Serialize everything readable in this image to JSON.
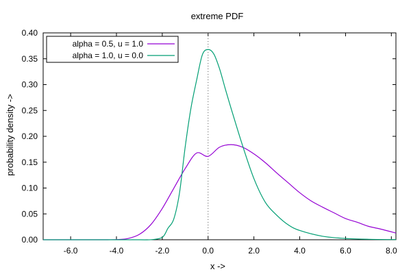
{
  "chart_data": {
    "type": "line",
    "title": "extreme PDF",
    "xlabel": "x ->",
    "ylabel": "probability density ->",
    "xlim": [
      -7.2,
      8.2
    ],
    "ylim": [
      0,
      0.4
    ],
    "x_ticks": [
      -6,
      -4,
      -2,
      0,
      2,
      4,
      6,
      8
    ],
    "x_tick_labels": [
      "-6.0",
      "-4.0",
      "-2.0",
      "0.0",
      "2.0",
      "4.0",
      "6.0",
      "8.0"
    ],
    "y_ticks": [
      0,
      0.05,
      0.1,
      0.15,
      0.2,
      0.25,
      0.3,
      0.35,
      0.4
    ],
    "y_tick_labels": [
      "0.00",
      "0.05",
      "0.10",
      "0.15",
      "0.20",
      "0.25",
      "0.30",
      "0.35",
      "0.40"
    ],
    "grid": false,
    "legend_position": "top-left",
    "vertical_reference_line_x": 0,
    "series": [
      {
        "name": "alpha = 0.5, u = 1.0",
        "color": "#9400d3",
        "points": [
          [
            -7.2,
            0.0
          ],
          [
            -6,
            0.0
          ],
          [
            -5,
            0.0
          ],
          [
            -4.5,
            0.0
          ],
          [
            -4,
            0.0004
          ],
          [
            -3.5,
            0.0024
          ],
          [
            -3,
            0.0104
          ],
          [
            -2.5,
            0.0292
          ],
          [
            -2,
            0.0605
          ],
          [
            -1.5,
            0.0993
          ],
          [
            -1,
            0.1376
          ],
          [
            -0.5,
            0.1677
          ],
          [
            0,
            0.1612
          ],
          [
            0.5,
            0.179
          ],
          [
            1,
            0.1839
          ],
          [
            1.5,
            0.179
          ],
          [
            2,
            0.166
          ],
          [
            2.5,
            0.149
          ],
          [
            3,
            0.129
          ],
          [
            3.5,
            0.11
          ],
          [
            4,
            0.091
          ],
          [
            4.5,
            0.075
          ],
          [
            5,
            0.063
          ],
          [
            5.5,
            0.052
          ],
          [
            6,
            0.041
          ],
          [
            6.5,
            0.034
          ],
          [
            7,
            0.026
          ],
          [
            7.5,
            0.021
          ],
          [
            8.2,
            0.013
          ]
        ]
      },
      {
        "name": "alpha = 1.0, u = 0.0",
        "color": "#009e73",
        "points": [
          [
            -7.2,
            0.0
          ],
          [
            -4,
            0.0
          ],
          [
            -3,
            0.0
          ],
          [
            -2.5,
            6e-05
          ],
          [
            -2,
            0.0046
          ],
          [
            -1.75,
            0.0224
          ],
          [
            -1.5,
            0.0398
          ],
          [
            -1.25,
            0.09
          ],
          [
            -1,
            0.1794
          ],
          [
            -0.75,
            0.254
          ],
          [
            -0.5,
            0.3087
          ],
          [
            -0.25,
            0.3577
          ],
          [
            0,
            0.3679
          ],
          [
            0.25,
            0.3592
          ],
          [
            0.5,
            0.3307
          ],
          [
            0.75,
            0.292
          ],
          [
            1,
            0.2546
          ],
          [
            1.5,
            0.1828
          ],
          [
            2,
            0.1183
          ],
          [
            2.5,
            0.0723
          ],
          [
            3,
            0.0473
          ],
          [
            3.5,
            0.0288
          ],
          [
            4,
            0.0179
          ],
          [
            5,
            0.0067
          ],
          [
            6,
            0.0025
          ],
          [
            7,
            0.0009
          ],
          [
            8.2,
            0.0003
          ]
        ]
      }
    ]
  }
}
